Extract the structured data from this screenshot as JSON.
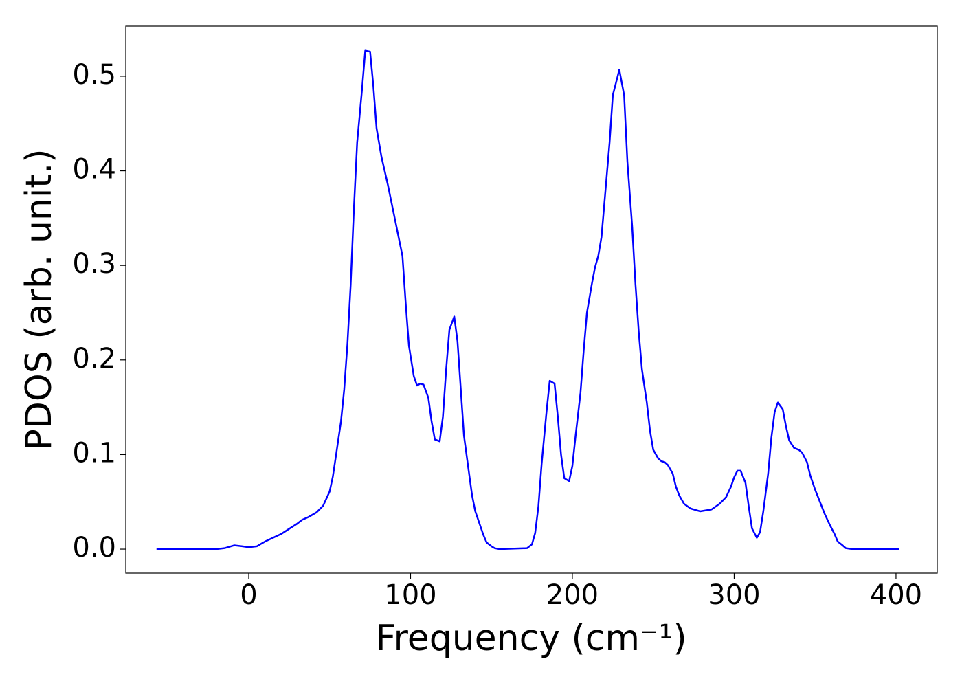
{
  "chart_data": {
    "type": "line",
    "xlabel": "Frequency (cm⁻¹)",
    "ylabel": "PDOS (arb. unit.)",
    "xlim": [
      -76,
      425.5
    ],
    "ylim": [
      -0.0254,
      0.553
    ],
    "xticks": [
      0,
      100,
      200,
      300,
      400
    ],
    "yticks": [
      {
        "value": 0,
        "label": "0.0"
      },
      0.1,
      0.2,
      0.3,
      0.4,
      0.5
    ],
    "grid": false,
    "series": [
      {
        "color": "#0000ff",
        "x": [
          -57,
          -20,
          -15,
          -9,
          -4,
          0,
          5,
          10,
          20,
          30,
          33,
          37,
          42,
          46,
          50,
          52,
          54,
          57,
          59,
          61,
          63,
          65,
          67,
          70,
          72,
          75,
          77,
          79,
          82,
          86,
          92,
          95,
          97,
          99,
          102,
          104,
          106,
          108,
          111,
          113,
          115,
          118,
          120,
          122,
          124,
          127,
          129,
          131,
          133,
          136,
          138,
          140,
          143,
          145,
          147,
          150,
          152,
          155,
          172,
          175,
          177,
          179,
          181,
          184,
          186,
          189,
          191,
          193,
          195,
          198,
          200,
          202,
          205,
          207,
          209,
          212,
          214,
          216,
          218,
          220,
          223,
          225,
          228,
          229,
          232,
          234,
          237,
          239,
          241,
          243,
          246,
          248,
          250,
          253,
          255,
          257,
          259,
          262,
          264,
          266,
          269,
          273,
          279,
          286,
          291,
          295,
          298,
          300,
          302,
          304,
          307,
          309,
          311,
          314,
          316,
          318,
          321,
          323,
          325,
          327,
          330,
          332,
          334,
          337,
          340,
          342,
          345,
          347,
          350,
          353,
          356,
          359,
          362,
          364,
          367,
          369,
          373,
          402
        ],
        "values": [
          0,
          0,
          0.001,
          0.004,
          0.003,
          0.002,
          0.003,
          0.008,
          0.016,
          0.027,
          0.031,
          0.034,
          0.039,
          0.046,
          0.061,
          0.077,
          0.1,
          0.135,
          0.169,
          0.217,
          0.28,
          0.36,
          0.43,
          0.486,
          0.527,
          0.526,
          0.49,
          0.445,
          0.415,
          0.385,
          0.335,
          0.31,
          0.26,
          0.215,
          0.183,
          0.173,
          0.175,
          0.174,
          0.16,
          0.135,
          0.116,
          0.114,
          0.14,
          0.19,
          0.232,
          0.246,
          0.22,
          0.17,
          0.12,
          0.082,
          0.057,
          0.04,
          0.025,
          0.015,
          0.007,
          0.003,
          0.001,
          0,
          0.001,
          0.005,
          0.017,
          0.045,
          0.09,
          0.145,
          0.178,
          0.175,
          0.14,
          0.1,
          0.075,
          0.072,
          0.088,
          0.12,
          0.165,
          0.21,
          0.25,
          0.28,
          0.298,
          0.31,
          0.33,
          0.37,
          0.43,
          0.48,
          0.5,
          0.507,
          0.48,
          0.41,
          0.34,
          0.28,
          0.23,
          0.19,
          0.155,
          0.125,
          0.105,
          0.096,
          0.093,
          0.092,
          0.089,
          0.08,
          0.066,
          0.057,
          0.048,
          0.043,
          0.04,
          0.042,
          0.048,
          0.055,
          0.066,
          0.076,
          0.083,
          0.083,
          0.07,
          0.045,
          0.022,
          0.012,
          0.018,
          0.04,
          0.08,
          0.118,
          0.145,
          0.155,
          0.148,
          0.13,
          0.115,
          0.107,
          0.105,
          0.102,
          0.092,
          0.078,
          0.063,
          0.05,
          0.037,
          0.026,
          0.016,
          0.008,
          0.004,
          0.001,
          0,
          0
        ]
      }
    ]
  }
}
